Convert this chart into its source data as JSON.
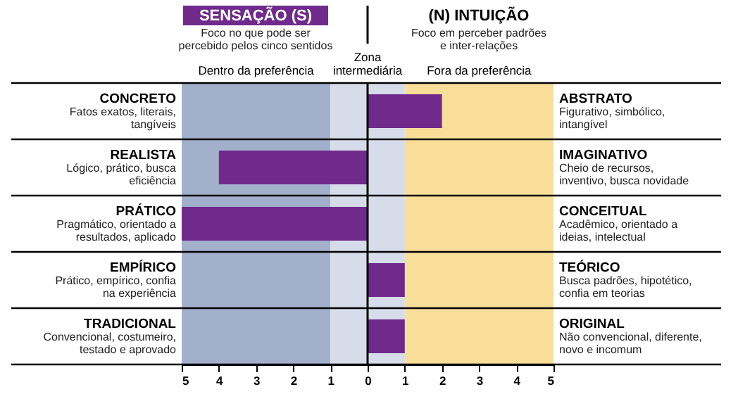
{
  "chart_data": {
    "type": "bar",
    "orientation": "horizontal",
    "categories": [
      "CONCRETO",
      "REALISTA",
      "PRÁTICO",
      "EMPÍRICO",
      "TRADICIONAL"
    ],
    "y2_categories": [
      "ABSTRATO",
      "IMAGINATIVO",
      "CONCEITUAL",
      "TEÓRICO",
      "ORIGINAL"
    ],
    "values": [
      2,
      -4,
      -5,
      1,
      1
    ],
    "color": "#6f2a8c",
    "xlim": [
      -5,
      5
    ],
    "xticks": [
      {
        "value": -5,
        "label": "5"
      },
      {
        "value": -4,
        "label": "4"
      },
      {
        "value": -3,
        "label": "3"
      },
      {
        "value": -2,
        "label": "2"
      },
      {
        "value": -1,
        "label": "1"
      },
      0,
      1,
      2,
      3,
      4,
      5
    ],
    "bands": [
      {
        "axis": "x",
        "from": -5,
        "to": -1,
        "label": "Dentro da preferência",
        "color": "#a2b0cc"
      },
      {
        "axis": "x",
        "from": -1,
        "to": 1,
        "label": "Zona intermediária",
        "color": "#d6dce9"
      },
      {
        "axis": "x",
        "from": 1,
        "to": 5,
        "label": "Fora da preferência",
        "color": "#f8de98"
      }
    ],
    "ref_lines": [
      {
        "axis": "x",
        "value": 0,
        "color": "#000000"
      }
    ],
    "annotations": [
      "SENSAÇÃO (S)",
      "Foco no que pode ser percebido pelos cinco sentidos",
      "(N) INTUIÇÃO",
      "Foco em perceber padrões e inter-relações",
      "Fatos exatos, literais, tangíveis",
      "Lógico, prático, busca eficiência",
      "Pragmático, orientado a resultados, aplicado",
      "Prático, empírico, confia na experiência",
      "Convencional, costumeiro, testado e aprovado",
      "Figurativo, simbólico, intangível",
      "Cheio de recursos, inventivo, busca novidade",
      "Acadêmico, orientado a ideias, intelectual",
      "Busca padrões, hipotético, confia em teorias",
      "Não convencional, diferente, novo e incomum"
    ],
    "grid": false
  }
}
